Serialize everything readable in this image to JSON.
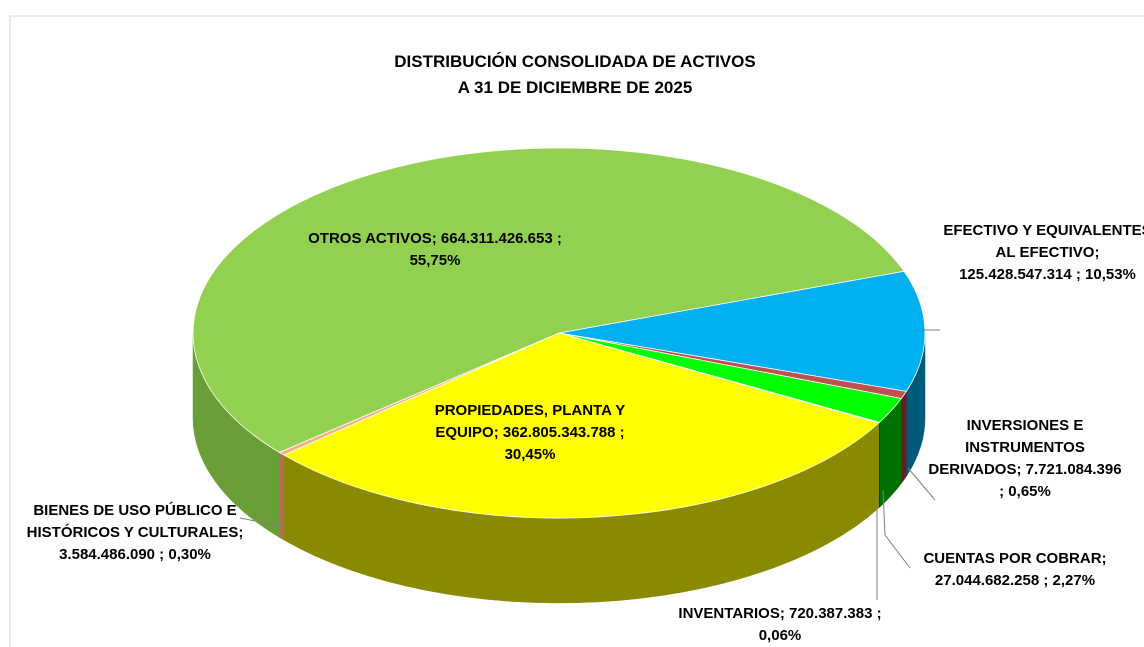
{
  "chart_data": {
    "type": "pie",
    "title": "DISTRIBUCIÓN CONSOLIDADA DE ACTIVOS",
    "subtitle": "A 31 DE DICIEMBRE DE 2025",
    "categories": [
      "EFECTIVO Y EQUIVALENTES AL EFECTIVO;",
      "INVERSIONES E INSTRUMENTOS DERIVADOS;",
      "CUENTAS POR COBRAR;",
      "INVENTARIOS;",
      "PROPIEDADES, PLANTA Y EQUIPO;",
      "BIENES DE USO PÚBLICO E HISTÓRICOS Y CULTURALES;",
      "OTROS ACTIVOS;"
    ],
    "values": [
      125428547314,
      7721084396,
      27044682258,
      720387383,
      362805343788,
      3584486090,
      664311426653
    ],
    "value_labels": [
      "125.428.547.314 ; 10,53%",
      "7.721.084.396 ; 0,65%",
      "27.044.682.258 ; 2,27%",
      "720.387.383 ; 0,06%",
      "362.805.343.788 ; 30,45%",
      "3.584.486.090 ; 0,30%",
      "664.311.426.653 ; 55,75%"
    ],
    "colors": [
      "#00b0f0",
      "#c0504d",
      "#00ff00",
      "#006600",
      "#ffff00",
      "#f4b183",
      "#92d050"
    ],
    "side_colors": [
      "#005a7a",
      "#5e2220",
      "#007000",
      "#003300",
      "#8a8a00",
      "#b07050",
      "#6a9e36"
    ]
  }
}
